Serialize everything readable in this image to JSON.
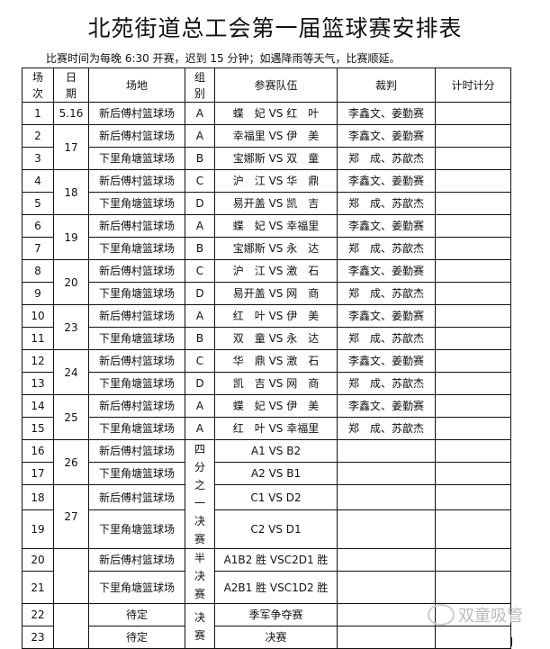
{
  "title": "北苑街道总工会第一届篮球赛安排表",
  "note": "比赛时间为每晚 6:30 开赛，迟到 15 分钟；如遇降雨等天气，比赛顺延。",
  "headers": [
    "场次",
    "日期",
    "场地",
    "组别",
    "参赛队伍",
    "裁判",
    "计时计分"
  ],
  "rows": [
    {
      "no": "1",
      "venue": "新后傅村篮球场",
      "teams": "蝶　妃 VS 红　叶",
      "referee": "李鑫文、姜勤赛"
    },
    {
      "no": "2",
      "venue": "新后傅村篮球场",
      "teams": "幸福里 VS 伊　美",
      "referee": "李鑫文、姜勤赛"
    },
    {
      "no": "3",
      "venue": "下里角塘篮球场",
      "teams": "宝娜斯 VS 双　童",
      "referee": "郑　成、苏歆杰"
    },
    {
      "no": "4",
      "venue": "新后傅村篮球场",
      "teams": "沪　江 VS 华　鼎",
      "referee": "李鑫文、姜勤赛"
    },
    {
      "no": "5",
      "venue": "下里角塘篮球场",
      "teams": "易开盖 VS 凯　吉",
      "referee": "郑　成、苏歆杰"
    },
    {
      "no": "6",
      "venue": "新后傅村篮球场",
      "teams": "蝶　妃 VS 幸福里",
      "referee": "李鑫文、姜勤赛"
    },
    {
      "no": "7",
      "venue": "下里角塘篮球场",
      "teams": "宝娜斯 VS 永　达",
      "referee": "郑　成、苏歆杰"
    },
    {
      "no": "8",
      "venue": "新后傅村篮球场",
      "teams": "沪　江 VS 激　石",
      "referee": "李鑫文、姜勤赛"
    },
    {
      "no": "9",
      "venue": "下里角塘篮球场",
      "teams": "易开盖 VS 网　商",
      "referee": "郑　成、苏歆杰"
    },
    {
      "no": "10",
      "venue": "新后傅村篮球场",
      "teams": "红　叶 VS 伊　美",
      "referee": "李鑫文、姜勤赛"
    },
    {
      "no": "11",
      "venue": "下里角塘篮球场",
      "teams": "双　童 VS 永　达",
      "referee": "郑　成、苏歆杰"
    },
    {
      "no": "12",
      "venue": "新后傅村篮球场",
      "teams": "华　鼎 VS 激　石",
      "referee": "李鑫文、姜勤赛"
    },
    {
      "no": "13",
      "venue": "下里角塘篮球场",
      "teams": "凯　吉 VS 网　商",
      "referee": "郑　成、苏歆杰"
    },
    {
      "no": "14",
      "venue": "新后傅村篮球场",
      "teams": "蝶　妃 VS 伊　美",
      "referee": "李鑫文、姜勤赛"
    },
    {
      "no": "15",
      "venue": "下里角塘篮球场",
      "teams": "红　叶 VS 幸福里",
      "referee": "郑　成、苏歆杰"
    },
    {
      "no": "16",
      "venue": "新后傅村篮球场",
      "teams": "A1 VS B2",
      "referee": ""
    },
    {
      "no": "17",
      "venue": "下里角塘篮球场",
      "teams": "A2 VS B1",
      "referee": ""
    },
    {
      "no": "18",
      "venue": "新后傅村篮球场",
      "teams": "C1 VS D2",
      "referee": ""
    },
    {
      "no": "19",
      "venue": "下里角塘篮球场",
      "teams": "C2 VS D1",
      "referee": ""
    },
    {
      "no": "20",
      "venue": "新后傅村篮球场",
      "teams": "A1B2 胜 VSC2D1 胜",
      "referee": ""
    },
    {
      "no": "21",
      "venue": "下里角塘篮球场",
      "teams": "A2B1 胜 VSC1D2 胜",
      "referee": ""
    },
    {
      "no": "22",
      "venue": "待定",
      "teams": "季军争夺赛",
      "referee": ""
    },
    {
      "no": "23",
      "venue": "待定",
      "teams": "决赛",
      "referee": ""
    }
  ],
  "dates": [
    {
      "label": "5.16",
      "span": 1
    },
    {
      "label": "17",
      "span": 2
    },
    {
      "label": "18",
      "span": 2
    },
    {
      "label": "19",
      "span": 2
    },
    {
      "label": "20",
      "span": 2
    },
    {
      "label": "23",
      "span": 2
    },
    {
      "label": "24",
      "span": 2
    },
    {
      "label": "25",
      "span": 2
    },
    {
      "label": "26",
      "span": 2
    },
    {
      "label": "27",
      "span": 2
    },
    {
      "label": "",
      "span": 2
    },
    {
      "label": "",
      "span": 2
    }
  ],
  "groups": [
    {
      "label": "A",
      "span": 1
    },
    {
      "label": "A",
      "span": 1
    },
    {
      "label": "B",
      "span": 1
    },
    {
      "label": "C",
      "span": 1
    },
    {
      "label": "D",
      "span": 1
    },
    {
      "label": "A",
      "span": 1
    },
    {
      "label": "B",
      "span": 1
    },
    {
      "label": "C",
      "span": 1
    },
    {
      "label": "D",
      "span": 1
    },
    {
      "label": "A",
      "span": 1
    },
    {
      "label": "B",
      "span": 1
    },
    {
      "label": "C",
      "span": 1
    },
    {
      "label": "D",
      "span": 1
    },
    {
      "label": "A",
      "span": 1
    },
    {
      "label": "A",
      "span": 1
    },
    {
      "label": "四分之一决赛",
      "span": 4
    },
    {
      "label": "半决赛",
      "span": 2
    },
    {
      "label": "决赛",
      "span": 2
    }
  ],
  "watermark": "双童吸管"
}
